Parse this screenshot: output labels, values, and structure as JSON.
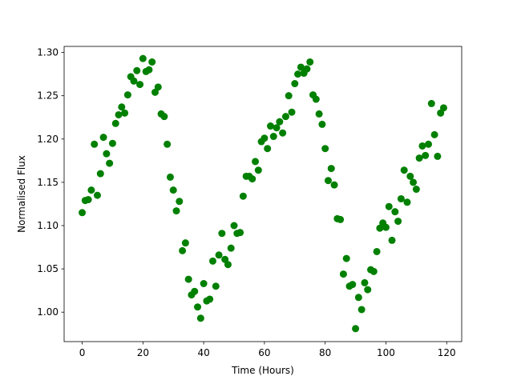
{
  "chart_data": {
    "type": "scatter",
    "xlabel": "Time (Hours)",
    "ylabel": "Normalised Flux",
    "series": [
      {
        "color": "#008000",
        "x": [
          0,
          1,
          2,
          3,
          4,
          5,
          6,
          7,
          8,
          9,
          10,
          11,
          12,
          13,
          14,
          15,
          16,
          17,
          18,
          19,
          20,
          21,
          22,
          23,
          24,
          25,
          26,
          27,
          28,
          29,
          30,
          31,
          32,
          33,
          34,
          35,
          36,
          37,
          38,
          39,
          40,
          41,
          42,
          43,
          44,
          45,
          46,
          47,
          48,
          49,
          50,
          51,
          52,
          53,
          54,
          55,
          56,
          57,
          58,
          59,
          60,
          61,
          62,
          63,
          64,
          65,
          66,
          67,
          68,
          69,
          70,
          71,
          72,
          73,
          74,
          75,
          76,
          77,
          78,
          79,
          80,
          81,
          82,
          83,
          84,
          85,
          86,
          87,
          88,
          89,
          90,
          91,
          92,
          93,
          94,
          95,
          96,
          97,
          98,
          99,
          100,
          101,
          102,
          103,
          104,
          105,
          106,
          107,
          108,
          109,
          110,
          111,
          112,
          113,
          114,
          115,
          116,
          117,
          118,
          119
        ],
        "values": [
          1.115,
          1.129,
          1.13,
          1.141,
          1.194,
          1.135,
          1.16,
          1.202,
          1.183,
          1.172,
          1.195,
          1.218,
          1.228,
          1.237,
          1.23,
          1.251,
          1.272,
          1.267,
          1.279,
          1.263,
          1.293,
          1.278,
          1.28,
          1.289,
          1.254,
          1.26,
          1.229,
          1.226,
          1.194,
          1.156,
          1.141,
          1.117,
          1.128,
          1.071,
          1.08,
          1.038,
          1.02,
          1.024,
          1.006,
          0.993,
          1.033,
          1.013,
          1.015,
          1.059,
          1.03,
          1.066,
          1.091,
          1.061,
          1.055,
          1.074,
          1.1,
          1.091,
          1.092,
          1.134,
          1.157,
          1.157,
          1.154,
          1.174,
          1.164,
          1.197,
          1.201,
          1.189,
          1.215,
          1.203,
          1.213,
          1.22,
          1.207,
          1.226,
          1.25,
          1.231,
          1.264,
          1.275,
          1.283,
          1.276,
          1.281,
          1.289,
          1.251,
          1.246,
          1.229,
          1.217,
          1.189,
          1.152,
          1.166,
          1.147,
          1.108,
          1.107,
          1.044,
          1.062,
          1.03,
          1.032,
          0.981,
          1.017,
          1.003,
          1.034,
          1.026,
          1.049,
          1.047,
          1.07,
          1.097,
          1.103,
          1.098,
          1.122,
          1.083,
          1.116,
          1.105,
          1.131,
          1.164,
          1.127,
          1.157,
          1.15,
          1.142,
          1.178,
          1.192,
          1.181,
          1.194,
          1.241,
          1.205,
          1.18,
          1.23,
          1.236
        ]
      }
    ],
    "xlim": [
      -5.95,
      124.95
    ],
    "xticks": [
      0,
      20,
      40,
      60,
      80,
      100,
      120
    ],
    "ylim": [
      0.966,
      1.307
    ],
    "yticks": [
      {
        "value": 1.0,
        "label": "1.00"
      },
      {
        "value": 1.05,
        "label": "1.05"
      },
      {
        "value": 1.1,
        "label": "1.10"
      },
      {
        "value": 1.15,
        "label": "1.15"
      },
      {
        "value": 1.2,
        "label": "1.20"
      },
      {
        "value": 1.25,
        "label": "1.25"
      },
      {
        "value": 1.3,
        "label": "1.30"
      }
    ],
    "grid": false
  }
}
